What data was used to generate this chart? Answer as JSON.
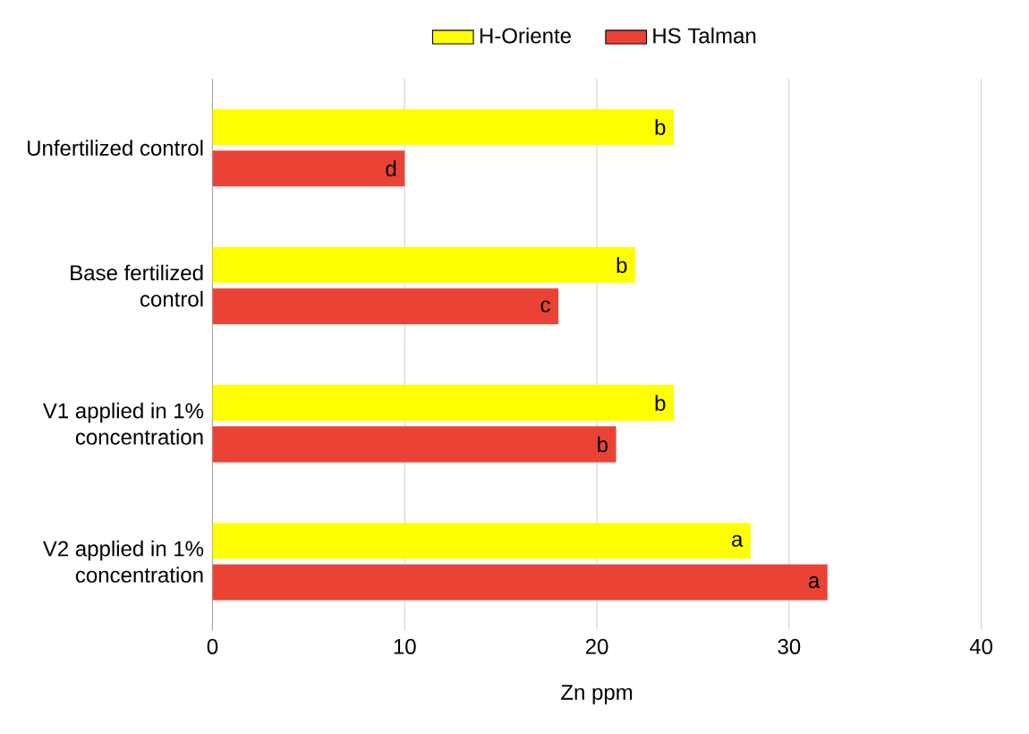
{
  "chart_data": {
    "type": "bar",
    "orientation": "horizontal",
    "xlabel": "Zn ppm",
    "categories": [
      "Unfertilized control",
      "Base fertilized control",
      "V1 applied in 1% concentration",
      "V2 applied in 1% concentration"
    ],
    "series": [
      {
        "name": "H-Oriente",
        "color": "#ffff00",
        "values": [
          24,
          22,
          24,
          28
        ],
        "value_labels": [
          "b",
          "b",
          "b",
          "a"
        ]
      },
      {
        "name": "HS Talman",
        "color": "#ea4335",
        "values": [
          10,
          18,
          21,
          32
        ],
        "value_labels": [
          "d",
          "c",
          "b",
          "a"
        ]
      }
    ],
    "xlim": [
      0,
      40
    ],
    "xticks": [
      0,
      10,
      20,
      30,
      40
    ],
    "grid": "x",
    "legend": "top"
  }
}
